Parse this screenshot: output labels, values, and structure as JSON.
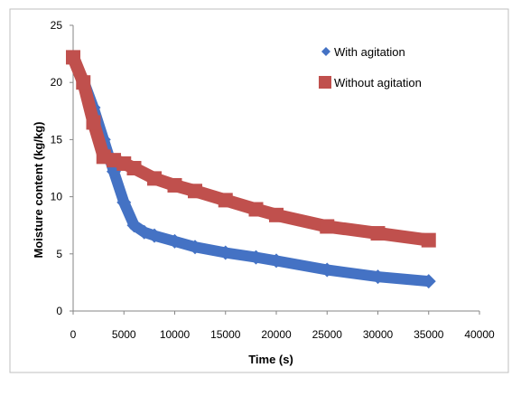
{
  "chart_data": {
    "type": "line",
    "title": "",
    "xlabel": "Time (s)",
    "ylabel": "Moisture content (kg/kg)",
    "xlim": [
      0,
      40000
    ],
    "ylim": [
      0,
      25
    ],
    "xticks": [
      0,
      5000,
      10000,
      15000,
      20000,
      25000,
      30000,
      35000,
      40000
    ],
    "yticks": [
      0,
      5,
      10,
      15,
      20,
      25
    ],
    "xtick_labels": [
      "0",
      "5000",
      "10000",
      "15000",
      "20000",
      "25000",
      "30000",
      "35000",
      "40000"
    ],
    "ytick_labels": [
      "0",
      "5",
      "10",
      "15",
      "20",
      "25"
    ],
    "grid": false,
    "legend_position": "top-right",
    "series": [
      {
        "name": "With agitation",
        "color": "#4472C4",
        "marker": "diamond",
        "x": [
          0,
          1000,
          2000,
          3000,
          4000,
          5000,
          6000,
          7000,
          8000,
          10000,
          12000,
          15000,
          18000,
          20000,
          25000,
          30000,
          35000
        ],
        "y": [
          22.2,
          20.2,
          17.8,
          15.0,
          12.2,
          9.5,
          7.5,
          6.9,
          6.6,
          6.1,
          5.6,
          5.1,
          4.7,
          4.4,
          3.6,
          3.0,
          2.6
        ]
      },
      {
        "name": "Without agitation",
        "color": "#C0504D",
        "marker": "square",
        "x": [
          0,
          1000,
          2000,
          3000,
          4000,
          5000,
          6000,
          8000,
          10000,
          12000,
          15000,
          18000,
          20000,
          25000,
          30000,
          35000
        ],
        "y": [
          22.2,
          20.0,
          16.5,
          13.5,
          13.2,
          12.9,
          12.5,
          11.6,
          11.0,
          10.5,
          9.7,
          8.9,
          8.4,
          7.4,
          6.8,
          6.2
        ]
      }
    ]
  }
}
